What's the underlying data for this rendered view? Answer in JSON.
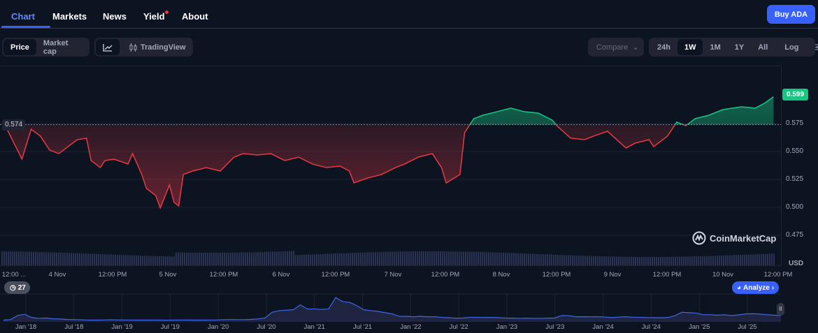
{
  "tabs": [
    {
      "label": "Chart",
      "active": true
    },
    {
      "label": "Markets"
    },
    {
      "label": "News"
    },
    {
      "label": "Yield",
      "badge_dot": true
    },
    {
      "label": "About"
    }
  ],
  "buy_button": "Buy ADA",
  "toolbar": {
    "price_type": [
      "Price",
      "Market cap"
    ],
    "selected_price_type": "Price",
    "chart_style_icon": "line-chart-icon",
    "tradingview_label": "TradingView",
    "tradingview_icon": "candlestick-icon",
    "compare_label": "Compare",
    "ranges": [
      "24h",
      "1W",
      "1M",
      "1Y",
      "All"
    ],
    "selected_range": "1W",
    "log_label": "Log",
    "settings_icon": "sliders-icon"
  },
  "colors": {
    "up": "#16c784",
    "down": "#ea3943",
    "accent": "#3861fb",
    "background": "#0d1421"
  },
  "watermark": "CoinMarketCap",
  "history_badge": "27",
  "analyze_label": "Analyze",
  "chart_data": {
    "type": "line",
    "currency": "USD",
    "current_price": "0.599",
    "baseline": "0.574",
    "ylim": [
      0.455,
      0.607
    ],
    "y_ticks": [
      "0.599",
      "0.575",
      "0.550",
      "0.525",
      "0.500",
      "0.475"
    ],
    "x_ticks": [
      "12:00 ...",
      "4 Nov",
      "12:00 PM",
      "5 Nov",
      "12:00 PM",
      "6 Nov",
      "12:00 PM",
      "7 Nov",
      "12:00 PM",
      "8 Nov",
      "12:00 PM",
      "9 Nov",
      "12:00 PM",
      "10 Nov",
      "12:00 PM"
    ],
    "xlim": [
      "2025-11-03T12:00",
      "2025-11-10T12:00"
    ],
    "points": [
      [
        "2025-11-03T12:00",
        0.5763
      ],
      [
        "2025-11-03T16:00",
        0.5432
      ],
      [
        "2025-11-03T18:00",
        0.57
      ],
      [
        "2025-11-03T20:00",
        0.5638
      ],
      [
        "2025-11-03T22:00",
        0.5513
      ],
      [
        "2025-11-04T00:00",
        0.5481
      ],
      [
        "2025-11-04T02:00",
        0.5544
      ],
      [
        "2025-11-04T04:00",
        0.5606
      ],
      [
        "2025-11-04T06:00",
        0.5619
      ],
      [
        "2025-11-04T07:00",
        0.5419
      ],
      [
        "2025-11-04T09:00",
        0.5356
      ],
      [
        "2025-11-04T10:00",
        0.5419
      ],
      [
        "2025-11-04T12:00",
        0.5431
      ],
      [
        "2025-11-04T15:00",
        0.5388
      ],
      [
        "2025-11-04T16:00",
        0.5481
      ],
      [
        "2025-11-04T18:00",
        0.5294
      ],
      [
        "2025-11-04T19:00",
        0.5169
      ],
      [
        "2025-11-04T21:00",
        0.5106
      ],
      [
        "2025-11-04T22:00",
        0.4994
      ],
      [
        "2025-11-05T00:00",
        0.52
      ],
      [
        "2025-11-05T01:00",
        0.5044
      ],
      [
        "2025-11-05T02:00",
        0.5013
      ],
      [
        "2025-11-05T03:00",
        0.5294
      ],
      [
        "2025-11-05T05:00",
        0.5325
      ],
      [
        "2025-11-05T08:00",
        0.5356
      ],
      [
        "2025-11-05T11:00",
        0.5325
      ],
      [
        "2025-11-05T14:00",
        0.545
      ],
      [
        "2025-11-05T16:00",
        0.5481
      ],
      [
        "2025-11-05T19:00",
        0.5469
      ],
      [
        "2025-11-05T22:00",
        0.5481
      ],
      [
        "2025-11-06T01:00",
        0.5419
      ],
      [
        "2025-11-06T04:00",
        0.545
      ],
      [
        "2025-11-06T07:00",
        0.5388
      ],
      [
        "2025-11-06T10:00",
        0.5356
      ],
      [
        "2025-11-06T13:00",
        0.5369
      ],
      [
        "2025-11-06T15:00",
        0.5325
      ],
      [
        "2025-11-06T16:00",
        0.5219
      ],
      [
        "2025-11-06T19:00",
        0.5263
      ],
      [
        "2025-11-06T22:00",
        0.5294
      ],
      [
        "2025-11-07T01:00",
        0.5356
      ],
      [
        "2025-11-07T03:00",
        0.5388
      ],
      [
        "2025-11-07T06:00",
        0.545
      ],
      [
        "2025-11-07T09:00",
        0.5481
      ],
      [
        "2025-11-07T11:00",
        0.5356
      ],
      [
        "2025-11-07T12:00",
        0.5219
      ],
      [
        "2025-11-07T15:00",
        0.5294
      ],
      [
        "2025-11-07T16:00",
        0.5669
      ],
      [
        "2025-11-07T18:00",
        0.5794
      ],
      [
        "2025-11-07T20:00",
        0.5825
      ],
      [
        "2025-11-07T23:00",
        0.5856
      ],
      [
        "2025-11-08T02:00",
        0.5888
      ],
      [
        "2025-11-08T05:00",
        0.5856
      ],
      [
        "2025-11-08T08:00",
        0.5844
      ],
      [
        "2025-11-08T11:00",
        0.5781
      ],
      [
        "2025-11-08T12:00",
        0.5731
      ],
      [
        "2025-11-08T15:00",
        0.5619
      ],
      [
        "2025-11-08T18:00",
        0.5606
      ],
      [
        "2025-11-08T20:00",
        0.5638
      ],
      [
        "2025-11-08T23:00",
        0.5681
      ],
      [
        "2025-11-09T01:00",
        0.5606
      ],
      [
        "2025-11-09T03:00",
        0.5531
      ],
      [
        "2025-11-09T05:00",
        0.5575
      ],
      [
        "2025-11-09T08:00",
        0.5606
      ],
      [
        "2025-11-09T09:00",
        0.5544
      ],
      [
        "2025-11-09T12:00",
        0.5638
      ],
      [
        "2025-11-09T14:00",
        0.5763
      ],
      [
        "2025-11-09T16:00",
        0.5731
      ],
      [
        "2025-11-09T18:00",
        0.5794
      ],
      [
        "2025-11-09T21:00",
        0.5825
      ],
      [
        "2025-11-10T00:00",
        0.5875
      ],
      [
        "2025-11-10T04:00",
        0.59
      ],
      [
        "2025-11-10T07:00",
        0.5888
      ],
      [
        "2025-11-10T09:00",
        0.5931
      ],
      [
        "2025-11-10T11:00",
        0.599
      ]
    ],
    "navigator": {
      "x_ticks": [
        "Jan '18",
        "Jul '18",
        "Jan '19",
        "Jul '19",
        "Jan '20",
        "Jul '20",
        "Jan '21",
        "Jul '21",
        "Jan '22",
        "Jul '22",
        "Jan '23",
        "Jul '23",
        "Jan '24",
        "Jul '24",
        "Jan '25",
        "Jul '25"
      ],
      "xlim": [
        "2017-10",
        "2025-11"
      ],
      "monthly": [
        0.03,
        0.1,
        0.6,
        0.75,
        0.35,
        0.25,
        0.3,
        0.2,
        0.18,
        0.12,
        0.1,
        0.08,
        0.05,
        0.04,
        0.05,
        0.08,
        0.07,
        0.06,
        0.05,
        0.04,
        0.04,
        0.04,
        0.04,
        0.035,
        0.04,
        0.05,
        0.06,
        0.04,
        0.04,
        0.05,
        0.05,
        0.09,
        0.1,
        0.1,
        0.09,
        0.13,
        0.18,
        0.3,
        1.0,
        1.2,
        1.25,
        1.3,
        1.9,
        1.4,
        1.4,
        1.35,
        1.4,
        2.8,
        2.3,
        2.2,
        1.8,
        1.3,
        1.2,
        1.1,
        0.95,
        0.8,
        0.5,
        0.5,
        0.45,
        0.5,
        0.45,
        0.45,
        0.38,
        0.33,
        0.28,
        0.3,
        0.38,
        0.38,
        0.36,
        0.37,
        0.34,
        0.3,
        0.28,
        0.25,
        0.27,
        0.25,
        0.25,
        0.28,
        0.3,
        0.6,
        0.58,
        0.45,
        0.46,
        0.45,
        0.45,
        0.42,
        0.35,
        0.4,
        0.45,
        0.4,
        0.38,
        0.35,
        0.34,
        0.33,
        0.35,
        0.58,
        1.0,
        0.95,
        0.9,
        0.7,
        0.7,
        0.65,
        0.7,
        0.6,
        0.68,
        0.8,
        0.82,
        0.78,
        0.7,
        0.65,
        0.6
      ]
    }
  }
}
